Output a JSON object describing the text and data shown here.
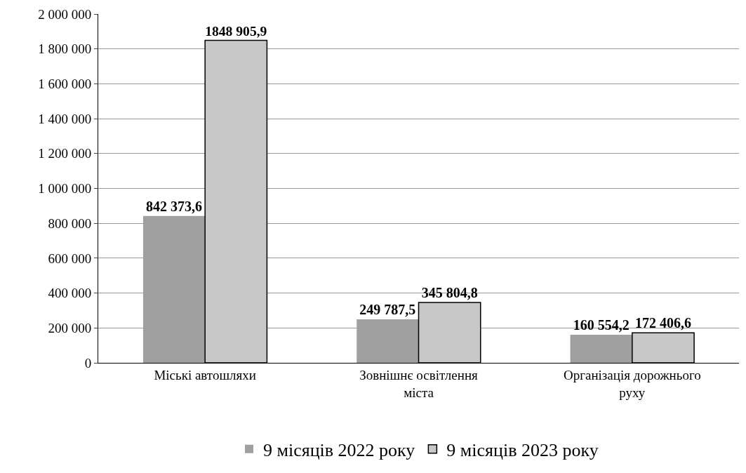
{
  "chart_data": {
    "type": "bar",
    "categories": [
      "Міські автошляхи",
      "Зовнішнє освітлення міста",
      "Організація дорожнього руху"
    ],
    "series": [
      {
        "name": "9 місяців 2022 року",
        "color": "#a0a0a0",
        "values": [
          842373.6,
          249787.5,
          160554.2
        ],
        "value_labels": [
          "842 373,6",
          "249 787,5",
          "160 554,2"
        ]
      },
      {
        "name": "9 місяців 2023 року",
        "color": "#c8c8c8",
        "values": [
          1848905.9,
          345804.8,
          172406.6
        ],
        "value_labels": [
          "1848 905,9",
          "345 804,8",
          "172 406,6"
        ]
      }
    ],
    "ylim": [
      0,
      2000000
    ],
    "yticks": [
      {
        "value": 0,
        "label": "0"
      },
      {
        "value": 200000,
        "label": "200 000"
      },
      {
        "value": 400000,
        "label": "400 000"
      },
      {
        "value": 600000,
        "label": "600 000"
      },
      {
        "value": 800000,
        "label": "800 000"
      },
      {
        "value": 1000000,
        "label": "1 000 000"
      },
      {
        "value": 1200000,
        "label": "1 200 000"
      },
      {
        "value": 1400000,
        "label": "1 400 000"
      },
      {
        "value": 1600000,
        "label": "1 600 000"
      },
      {
        "value": 1800000,
        "label": "1 800 000"
      },
      {
        "value": 2000000,
        "label": "2 000 000"
      }
    ],
    "grid": "y",
    "legend": "bottom"
  }
}
